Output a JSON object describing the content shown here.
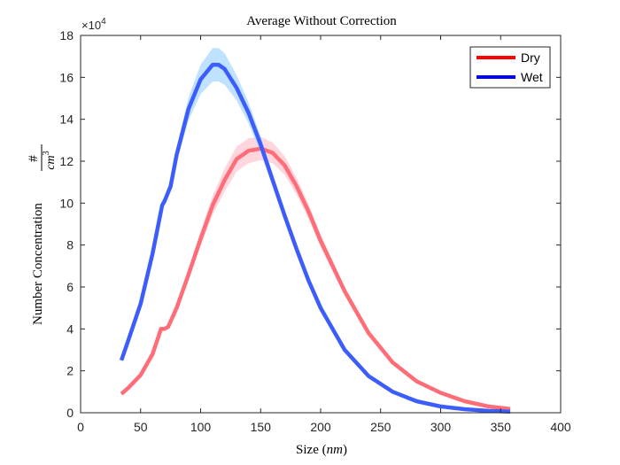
{
  "chart_data": {
    "type": "line",
    "title": "Average Without Correction",
    "xlabel_prefix": "Size (",
    "xlabel_unit": "nm",
    "xlabel_suffix": ")",
    "ylabel_text": "Number Concentration",
    "ylabel_frac_num": "#",
    "ylabel_frac_den_base": "cm",
    "ylabel_frac_den_exp": "3",
    "y_multiplier_base": "×10",
    "y_multiplier_exp": "4",
    "xlim": [
      0,
      400
    ],
    "ylim": [
      0,
      18
    ],
    "xticks": [
      0,
      50,
      100,
      150,
      200,
      250,
      300,
      350,
      400
    ],
    "yticks": [
      0,
      2,
      4,
      6,
      8,
      10,
      12,
      14,
      16,
      18
    ],
    "grid": false,
    "legend_position": "top-right",
    "series": [
      {
        "name": "Dry",
        "color": "#ff0000",
        "line_color": "#ff6e78",
        "band_color": "#ffc8d2",
        "x": [
          34,
          40,
          50,
          60,
          67,
          70,
          73,
          80,
          90,
          100,
          110,
          120,
          130,
          140,
          150,
          160,
          170,
          180,
          190,
          200,
          220,
          240,
          260,
          280,
          300,
          320,
          340,
          358
        ],
        "y": [
          0.9,
          1.2,
          1.8,
          2.8,
          4.0,
          4.0,
          4.1,
          5.0,
          6.6,
          8.3,
          9.9,
          11.1,
          12.1,
          12.5,
          12.6,
          12.4,
          11.8,
          10.8,
          9.6,
          8.2,
          5.8,
          3.8,
          2.4,
          1.5,
          0.95,
          0.55,
          0.3,
          0.18
        ],
        "band_width": [
          0.05,
          0.05,
          0.05,
          0.08,
          0.1,
          0.1,
          0.1,
          0.15,
          0.25,
          0.35,
          0.45,
          0.55,
          0.6,
          0.6,
          0.55,
          0.5,
          0.45,
          0.4,
          0.35,
          0.3,
          0.2,
          0.15,
          0.1,
          0.08,
          0.05,
          0.04,
          0.03,
          0.02
        ]
      },
      {
        "name": "Wet",
        "color": "#0000ff",
        "line_color": "#3d5dfa",
        "band_color": "#a8d8ff",
        "x": [
          34,
          40,
          50,
          60,
          68,
          70,
          75,
          80,
          90,
          100,
          110,
          115,
          120,
          130,
          140,
          150,
          160,
          170,
          180,
          190,
          200,
          220,
          240,
          260,
          280,
          300,
          320,
          340,
          358
        ],
        "y": [
          2.5,
          3.5,
          5.2,
          7.6,
          9.9,
          10.1,
          10.8,
          12.3,
          14.5,
          15.9,
          16.6,
          16.6,
          16.4,
          15.5,
          14.3,
          12.8,
          11.1,
          9.4,
          7.8,
          6.3,
          5.0,
          3.0,
          1.75,
          1.0,
          0.55,
          0.3,
          0.17,
          0.09,
          0.05
        ],
        "band_width": [
          0.05,
          0.07,
          0.1,
          0.15,
          0.2,
          0.2,
          0.25,
          0.35,
          0.55,
          0.7,
          0.8,
          0.8,
          0.75,
          0.6,
          0.5,
          0.4,
          0.3,
          0.25,
          0.2,
          0.15,
          0.1,
          0.07,
          0.05,
          0.04,
          0.03,
          0.02,
          0.02,
          0.01,
          0.01
        ]
      }
    ]
  }
}
